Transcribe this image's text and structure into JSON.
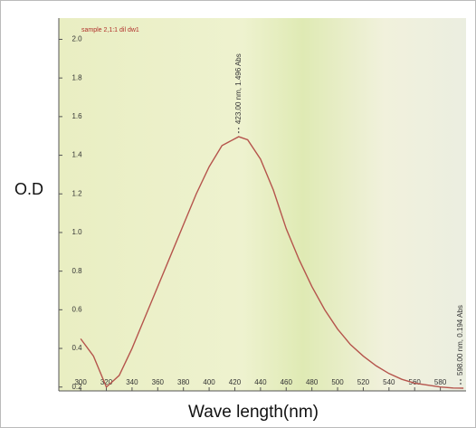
{
  "chart_data": {
    "type": "line",
    "title": "sample 2,1:1 dil dw1",
    "x_label": "Wave length(nm)",
    "y_label": "O.D",
    "x": [
      300,
      310,
      320,
      330,
      340,
      350,
      360,
      370,
      380,
      390,
      400,
      410,
      423,
      430,
      440,
      450,
      460,
      470,
      480,
      490,
      500,
      510,
      520,
      530,
      540,
      550,
      560,
      570,
      580,
      590,
      598
    ],
    "series": [
      {
        "name": "sample 2,1:1 dil dw1",
        "color": "#b5544c",
        "values": [
          0.45,
          0.36,
          0.2,
          0.26,
          0.4,
          0.56,
          0.72,
          0.88,
          1.04,
          1.2,
          1.34,
          1.45,
          1.496,
          1.48,
          1.38,
          1.22,
          1.02,
          0.86,
          0.72,
          0.6,
          0.5,
          0.42,
          0.36,
          0.31,
          0.27,
          0.24,
          0.22,
          0.21,
          0.2,
          0.195,
          0.194
        ]
      }
    ],
    "annotations": [
      {
        "text": "423.00 nm, 1.496 Abs",
        "x": 423,
        "y": 1.496
      },
      {
        "text": "598.00 nm, 0.194 Abs",
        "x": 598,
        "y": 0.194
      }
    ],
    "xlim": [
      283,
      600
    ],
    "ylim": [
      0.18,
      2.11
    ],
    "xticks": [
      300,
      320,
      340,
      360,
      380,
      400,
      420,
      440,
      460,
      480,
      500,
      520,
      540,
      560,
      580
    ],
    "yticks": [
      {
        "value": 0.2,
        "label": "0.2"
      },
      0.4,
      0.6,
      0.8,
      {
        "value": 1,
        "label": "1.0"
      },
      1.2,
      1.4,
      1.6,
      1.8,
      {
        "value": 2,
        "label": "2.0"
      }
    ],
    "grid": false
  }
}
